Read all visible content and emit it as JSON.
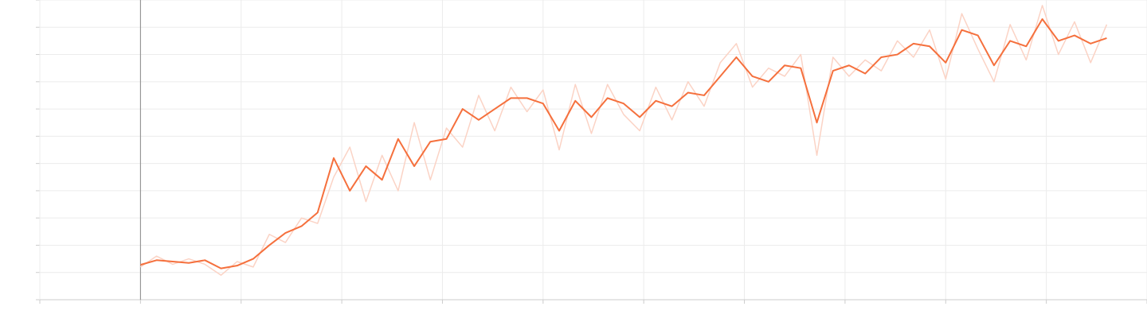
{
  "chart_data": {
    "type": "line",
    "xlim": [
      0,
      11
    ],
    "xticks": [
      0,
      1,
      2,
      3,
      4,
      5,
      6,
      7,
      8,
      9,
      10,
      11
    ],
    "ylim": [
      0,
      11
    ],
    "yticks": [
      0,
      1,
      2,
      3,
      4,
      5,
      6,
      7,
      8,
      9,
      10,
      11
    ],
    "grid": true,
    "x": [
      1,
      1.16,
      1.32,
      1.48,
      1.64,
      1.8,
      1.96,
      2.12,
      2.28,
      2.44,
      2.6,
      2.76,
      2.92,
      3.08,
      3.24,
      3.4,
      3.56,
      3.72,
      3.88,
      4.04,
      4.2,
      4.36,
      4.52,
      4.68,
      4.84,
      5,
      5.16,
      5.32,
      5.48,
      5.64,
      5.8,
      5.96,
      6.12,
      6.28,
      6.44,
      6.6,
      6.76,
      6.92,
      7.08,
      7.24,
      7.4,
      7.56,
      7.72,
      7.88,
      8.04,
      8.2,
      8.36,
      8.52,
      8.68,
      8.84,
      9,
      9.16,
      9.32,
      9.48,
      9.64,
      9.8,
      9.96,
      10.12,
      10.28,
      10.44,
      10.6
    ],
    "series": [
      {
        "color": "#fbd3c5",
        "values": [
          1.2,
          1.6,
          1.3,
          1.5,
          1.3,
          0.9,
          1.4,
          1.2,
          2.4,
          2.1,
          3.0,
          2.8,
          4.5,
          5.6,
          3.6,
          5.3,
          4.0,
          6.5,
          4.4,
          6.3,
          5.6,
          7.5,
          6.2,
          7.8,
          6.9,
          7.7,
          5.5,
          7.9,
          6.1,
          7.9,
          6.8,
          6.2,
          7.8,
          6.6,
          8.0,
          7.1,
          8.7,
          9.4,
          7.8,
          8.5,
          8.2,
          9.0,
          5.3,
          8.9,
          8.2,
          8.8,
          8.4,
          9.5,
          8.9,
          9.9,
          8.1,
          10.5,
          9.2,
          8.0,
          10.1,
          8.8,
          10.8,
          9.0,
          10.2,
          8.7,
          10.1
        ]
      },
      {
        "color": "#f5703d",
        "values": [
          1.28,
          1.45,
          1.4,
          1.35,
          1.45,
          1.15,
          1.25,
          1.5,
          2.0,
          2.45,
          2.7,
          3.2,
          5.2,
          4.0,
          4.9,
          4.4,
          5.9,
          4.9,
          5.8,
          5.9,
          7.0,
          6.6,
          7.0,
          7.4,
          7.4,
          7.2,
          6.2,
          7.3,
          6.7,
          7.4,
          7.2,
          6.7,
          7.3,
          7.1,
          7.6,
          7.5,
          8.2,
          8.9,
          8.2,
          8.0,
          8.6,
          8.5,
          6.5,
          8.4,
          8.6,
          8.3,
          8.9,
          9.0,
          9.4,
          9.3,
          8.7,
          9.9,
          9.7,
          8.6,
          9.5,
          9.3,
          10.3,
          9.5,
          9.7,
          9.4,
          9.6
        ]
      }
    ]
  }
}
